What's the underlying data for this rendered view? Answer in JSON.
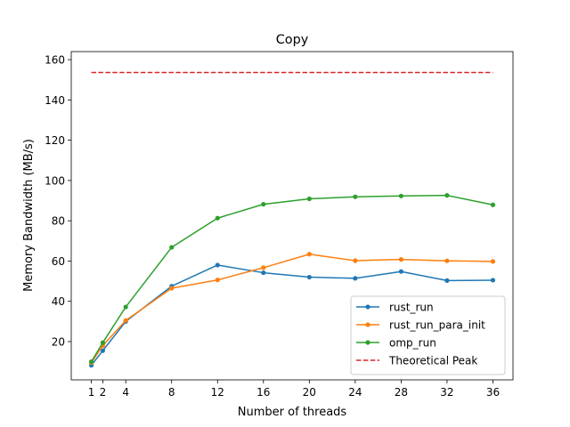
{
  "chart_data": {
    "type": "line",
    "title": "Copy",
    "xlabel": "Number of threads",
    "ylabel": "Memory Bandwidth (MB/s)",
    "x": [
      1,
      2,
      4,
      8,
      12,
      16,
      20,
      24,
      28,
      32,
      36
    ],
    "xticks": [
      1,
      2,
      4,
      8,
      12,
      16,
      20,
      24,
      28,
      32,
      36
    ],
    "yticks": [
      20,
      40,
      60,
      80,
      100,
      120,
      140,
      160
    ],
    "xlim": [
      -0.75,
      37.75
    ],
    "ylim": [
      1,
      164
    ],
    "grid": false,
    "legend_position": "lower right",
    "series": [
      {
        "name": "rust_run",
        "color": "#1f77b4",
        "marker": "circle",
        "style": "solid",
        "values": [
          8.2,
          15.5,
          30.0,
          47.5,
          58.0,
          54.2,
          52.0,
          51.4,
          54.8,
          50.3,
          50.5
        ]
      },
      {
        "name": "rust_run_para_init",
        "color": "#ff7f0e",
        "marker": "circle",
        "style": "solid",
        "values": [
          9.5,
          18.0,
          30.5,
          46.5,
          50.6,
          56.7,
          63.4,
          60.2,
          60.8,
          60.1,
          59.8
        ]
      },
      {
        "name": "omp_run",
        "color": "#2ca02c",
        "marker": "circle",
        "style": "solid",
        "values": [
          10.0,
          19.5,
          37.2,
          66.8,
          81.3,
          88.2,
          90.9,
          91.9,
          92.3,
          92.6,
          87.9
        ]
      },
      {
        "name": "Theoretical Peak",
        "color": "#d62728",
        "marker": "none",
        "style": "dashed",
        "values": [
          153.6,
          153.6,
          153.6,
          153.6,
          153.6,
          153.6,
          153.6,
          153.6,
          153.6,
          153.6,
          153.6
        ]
      }
    ]
  }
}
